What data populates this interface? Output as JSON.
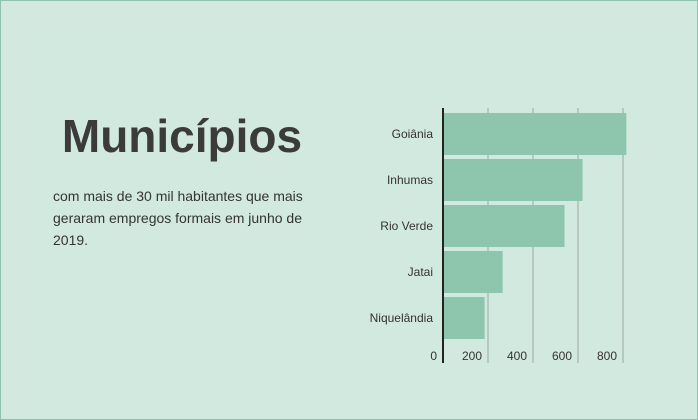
{
  "header": {
    "title": "Municípios",
    "subtitle": "com mais de 30 mil habitantes que mais geraram empregos formais em junho de 2019."
  },
  "colors": {
    "bar": "#8dc5ad",
    "background": "#d2e9df",
    "grid": "#9aa8a2",
    "axis": "#222222"
  },
  "chart_data": {
    "type": "bar",
    "orientation": "horizontal",
    "categories": [
      "Goiânia",
      "Inhumas",
      "Rio Verde",
      "Jatai",
      "Niquelândia"
    ],
    "values": [
      815,
      620,
      540,
      265,
      185
    ],
    "xlim": [
      0,
      880
    ],
    "xticks": [
      0,
      200,
      400,
      600,
      800
    ],
    "grid": true,
    "legend": "none"
  }
}
